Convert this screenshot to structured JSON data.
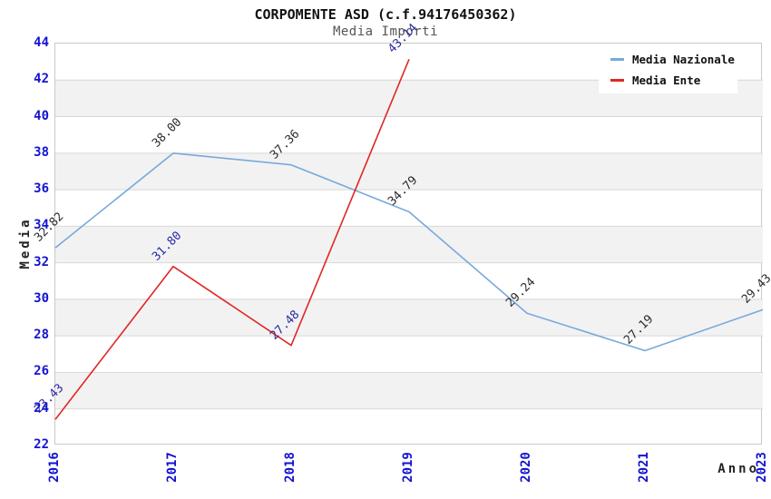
{
  "chart_data": {
    "type": "line",
    "title": "CORPOMENTE ASD (c.f.94176450362)",
    "subtitle": "Media Importi",
    "xlabel": "Anno",
    "ylabel": "Media",
    "categories": [
      "2016",
      "2017",
      "2018",
      "2019",
      "2020",
      "2021",
      "2023"
    ],
    "ylim": [
      22,
      44
    ],
    "y_tick_step": 2,
    "grid": "horizontal",
    "band_fill": "#f2f2f2",
    "gridline_color": "#d8d8d8",
    "plot_border_color": "#c9c9c9",
    "tick_label_color": "#1313cf",
    "legend": {
      "position": "top-right",
      "background": "#ffffff"
    },
    "series": [
      {
        "name": "Media Nazionale",
        "color": "#78a9dc",
        "label_color": "#2b2b2b",
        "values": [
          32.82,
          38.0,
          37.36,
          34.79,
          29.24,
          27.19,
          29.43
        ]
      },
      {
        "name": "Media Ente",
        "color": "#e12626",
        "label_color": "#2929a3",
        "values": [
          23.43,
          31.8,
          27.48,
          43.14,
          null,
          null,
          null
        ]
      }
    ]
  }
}
